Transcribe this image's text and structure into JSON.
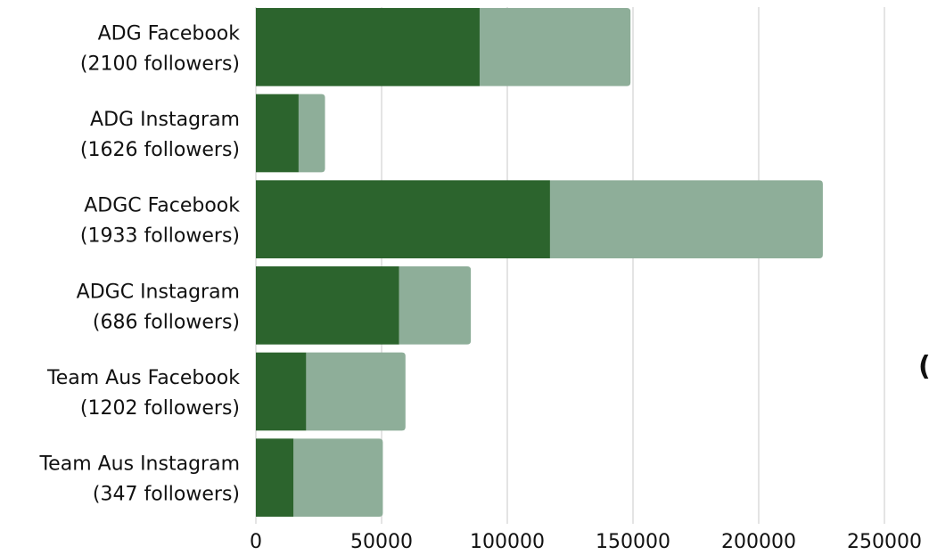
{
  "chart_data": {
    "type": "bar",
    "orientation": "horizontal",
    "stacked": true,
    "categories": [
      [
        "ADG Facebook",
        "(2100 followers)"
      ],
      [
        "ADG Instagram",
        "(1626 followers)"
      ],
      [
        "ADGC Facebook",
        "(1933 followers)"
      ],
      [
        "ADGC Instagram",
        "(686 followers)"
      ],
      [
        "Team Aus Facebook",
        "(1202 followers)"
      ],
      [
        "Team Aus Instagram",
        "(347 followers)"
      ]
    ],
    "series": [
      {
        "values": [
          89000,
          17000,
          117000,
          57000,
          20000,
          15000
        ],
        "color": "#2c642d"
      },
      {
        "values": [
          60000,
          10500,
          108500,
          28500,
          39500,
          35500
        ],
        "color": "#8eae99"
      }
    ],
    "x_ticks": [
      "0",
      "50000",
      "100000",
      "150000",
      "200000",
      "250000"
    ],
    "xlim": [
      0,
      250000
    ],
    "grid": true,
    "gridline_color": "#c8c8c8",
    "stray_text": "("
  }
}
